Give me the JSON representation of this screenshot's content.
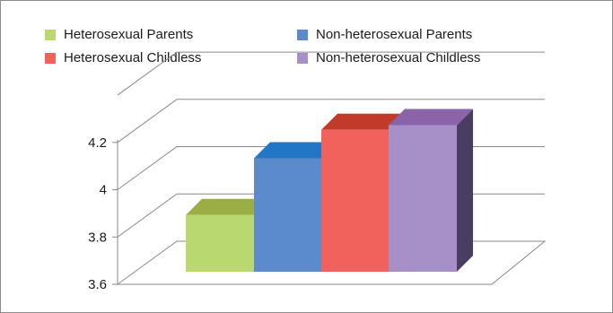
{
  "chart_data": {
    "type": "bar",
    "categories": [
      "Heterosexual Parents",
      "Non-heterosexual Parents",
      "Heterosexual Childless",
      "Non-heterosexual Childless"
    ],
    "values": [
      3.84,
      4.08,
      4.2,
      4.22
    ],
    "legend": {
      "placement": "top",
      "entries": [
        {
          "label": "Heterosexual Parents",
          "color": "#b9d86f",
          "side": "#93a83e",
          "top": "#9aae44"
        },
        {
          "label": "Non-heterosexual Parents",
          "color": "#5b8bca",
          "side": "#3c6296",
          "top": "#2276c6"
        },
        {
          "label": "Heterosexual Childless",
          "color": "#f2625c",
          "side": "#b83c2f",
          "top": "#c13a2a"
        },
        {
          "label": "Non-heterosexual Childless",
          "color": "#a790c7",
          "side": "#4a3d63",
          "top": "#8a64a8"
        }
      ]
    },
    "yaxis": {
      "min": 3.6,
      "max": 4.4,
      "ticks": [
        3.6,
        3.8,
        4,
        4.2
      ],
      "tick_labels": [
        "3.6",
        "3.8",
        "4",
        "4.2"
      ]
    },
    "grid": true,
    "three_d": true,
    "title": "",
    "xlabel": "",
    "ylabel": ""
  }
}
